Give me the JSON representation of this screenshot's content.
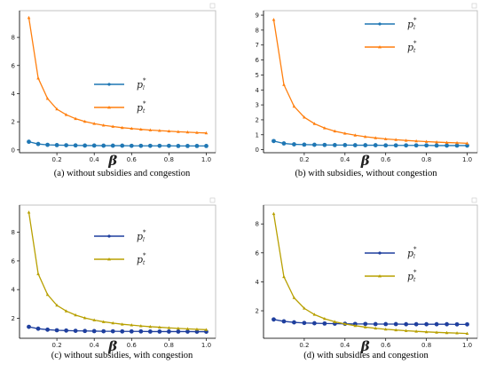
{
  "captions": {
    "a": "(a) without subsidies and congestion",
    "b": "(b) with subsidies, without congestion",
    "c": "(c) without subsidies, with congestion",
    "d": "(d) with subsidies and congestion"
  },
  "chart_data": [
    {
      "type": "line",
      "panel": "a",
      "xlabel": "β",
      "xticks": [
        "0.2",
        "0.4",
        "0.6",
        "0.8",
        "1.0"
      ],
      "yticks": [
        "0",
        "2",
        "4",
        "6",
        "8"
      ],
      "xlim": [
        0.0,
        1.05
      ],
      "ylim": [
        -0.2,
        9.9
      ],
      "legend_position": "center-right",
      "x": [
        0.05,
        0.1,
        0.15,
        0.2,
        0.25,
        0.3,
        0.35,
        0.4,
        0.45,
        0.5,
        0.55,
        0.6,
        0.65,
        0.7,
        0.75,
        0.8,
        0.85,
        0.9,
        0.95,
        1.0
      ],
      "series": [
        {
          "label_main": "p",
          "label_sup": "*",
          "label_sub": "l",
          "color": "#1f77b4",
          "marker": "circle",
          "values": [
            0.58,
            0.42,
            0.36,
            0.34,
            0.33,
            0.32,
            0.31,
            0.31,
            0.3,
            0.3,
            0.3,
            0.29,
            0.29,
            0.29,
            0.29,
            0.29,
            0.28,
            0.28,
            0.28,
            0.28
          ]
        },
        {
          "label_main": "p",
          "label_sup": "*",
          "label_sub": "t",
          "color": "#ff7f0e",
          "marker": "triangle",
          "values": [
            9.4,
            5.1,
            3.65,
            2.9,
            2.5,
            2.22,
            2.02,
            1.87,
            1.75,
            1.66,
            1.58,
            1.52,
            1.46,
            1.41,
            1.37,
            1.33,
            1.29,
            1.26,
            1.23,
            1.2
          ]
        }
      ]
    },
    {
      "type": "line",
      "panel": "b",
      "xlabel": "β",
      "xticks": [
        "0.2",
        "0.4",
        "0.6",
        "0.8",
        "1.0"
      ],
      "yticks": [
        "0",
        "1",
        "2",
        "3",
        "4",
        "5",
        "6",
        "7",
        "8",
        "9"
      ],
      "xlim": [
        0.0,
        1.05
      ],
      "ylim": [
        -0.2,
        9.3
      ],
      "legend_position": "upper-right",
      "x": [
        0.05,
        0.1,
        0.15,
        0.2,
        0.25,
        0.3,
        0.35,
        0.4,
        0.45,
        0.5,
        0.55,
        0.6,
        0.65,
        0.7,
        0.75,
        0.8,
        0.85,
        0.9,
        0.95,
        1.0
      ],
      "series": [
        {
          "label_main": "p",
          "label_sup": "*",
          "label_sub": "l",
          "color": "#1f77b4",
          "marker": "circle",
          "values": [
            0.58,
            0.42,
            0.36,
            0.34,
            0.33,
            0.32,
            0.31,
            0.31,
            0.3,
            0.3,
            0.3,
            0.29,
            0.29,
            0.29,
            0.29,
            0.29,
            0.28,
            0.28,
            0.28,
            0.28
          ]
        },
        {
          "label_main": "p",
          "label_sup": "*",
          "label_sub": "t",
          "color": "#ff7f0e",
          "marker": "triangle",
          "values": [
            8.7,
            4.35,
            2.9,
            2.17,
            1.74,
            1.45,
            1.24,
            1.09,
            0.97,
            0.87,
            0.79,
            0.72,
            0.67,
            0.62,
            0.58,
            0.54,
            0.51,
            0.48,
            0.46,
            0.43
          ]
        }
      ]
    },
    {
      "type": "line",
      "panel": "c",
      "xlabel": "β",
      "xticks": [
        "0.2",
        "0.4",
        "0.6",
        "0.8",
        "1.0"
      ],
      "yticks": [
        "2",
        "4",
        "6",
        "8"
      ],
      "xlim": [
        0.0,
        1.05
      ],
      "ylim": [
        0.6,
        9.9
      ],
      "legend_position": "upper-right",
      "x": [
        0.05,
        0.1,
        0.15,
        0.2,
        0.25,
        0.3,
        0.35,
        0.4,
        0.45,
        0.5,
        0.55,
        0.6,
        0.65,
        0.7,
        0.75,
        0.8,
        0.85,
        0.9,
        0.95,
        1.0
      ],
      "series": [
        {
          "label_main": "p",
          "label_sup": "*",
          "label_sub": "l",
          "color": "#1f3f9e",
          "marker": "circle",
          "values": [
            1.4,
            1.27,
            1.2,
            1.16,
            1.14,
            1.12,
            1.11,
            1.1,
            1.09,
            1.09,
            1.08,
            1.08,
            1.08,
            1.07,
            1.07,
            1.07,
            1.07,
            1.07,
            1.06,
            1.06
          ]
        },
        {
          "label_main": "p",
          "label_sup": "*",
          "label_sub": "t",
          "color": "#b8a000",
          "marker": "triangle",
          "values": [
            9.4,
            5.1,
            3.65,
            2.9,
            2.5,
            2.22,
            2.02,
            1.87,
            1.75,
            1.66,
            1.58,
            1.52,
            1.46,
            1.41,
            1.37,
            1.33,
            1.29,
            1.26,
            1.23,
            1.2
          ]
        }
      ]
    },
    {
      "type": "line",
      "panel": "d",
      "xlabel": "β",
      "xticks": [
        "0.2",
        "0.4",
        "0.6",
        "0.8",
        "1.0"
      ],
      "yticks": [
        "2",
        "4",
        "6",
        "8"
      ],
      "xlim": [
        0.0,
        1.05
      ],
      "ylim": [
        0.1,
        9.3
      ],
      "legend_position": "upper-right",
      "x": [
        0.05,
        0.1,
        0.15,
        0.2,
        0.25,
        0.3,
        0.35,
        0.4,
        0.45,
        0.5,
        0.55,
        0.6,
        0.65,
        0.7,
        0.75,
        0.8,
        0.85,
        0.9,
        0.95,
        1.0
      ],
      "series": [
        {
          "label_main": "p",
          "label_sup": "*",
          "label_sub": "l",
          "color": "#1f3f9e",
          "marker": "circle",
          "values": [
            1.4,
            1.27,
            1.2,
            1.16,
            1.14,
            1.12,
            1.11,
            1.1,
            1.09,
            1.09,
            1.08,
            1.08,
            1.08,
            1.07,
            1.07,
            1.07,
            1.07,
            1.07,
            1.06,
            1.06
          ]
        },
        {
          "label_main": "p",
          "label_sup": "*",
          "label_sub": "t",
          "color": "#b8a000",
          "marker": "triangle",
          "values": [
            8.7,
            4.35,
            2.9,
            2.17,
            1.74,
            1.45,
            1.24,
            1.09,
            0.97,
            0.87,
            0.79,
            0.72,
            0.67,
            0.62,
            0.58,
            0.54,
            0.51,
            0.48,
            0.46,
            0.43
          ]
        }
      ]
    }
  ]
}
